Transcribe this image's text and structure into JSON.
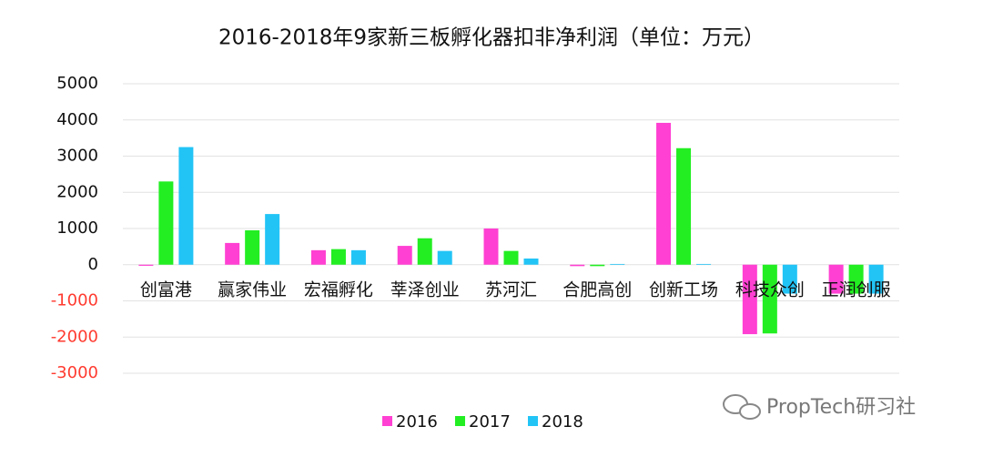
{
  "chart_data": {
    "type": "bar",
    "title": "2016-2018年9家新三板孵化器扣非净利润（单位：万元）",
    "categories": [
      "创富港",
      "赢家伟业",
      "宏福孵化",
      "莘泽创业",
      "苏河汇",
      "合肥高创",
      "创新工场",
      "科技众创",
      "正润创服"
    ],
    "series": [
      {
        "name": "2016",
        "color": "#ff40d2",
        "values": [
          -30,
          600,
          400,
          520,
          1000,
          -40,
          3920,
          -1920,
          -800
        ]
      },
      {
        "name": "2017",
        "color": "#22ee22",
        "values": [
          2300,
          950,
          430,
          730,
          380,
          -40,
          3220,
          -1900,
          -800
        ]
      },
      {
        "name": "2018",
        "color": "#22c4f6",
        "values": [
          3250,
          1400,
          400,
          380,
          170,
          20,
          20,
          -800,
          -800
        ]
      }
    ],
    "ylim": [
      -3000,
      5000
    ],
    "yticks": [
      -3000,
      -2000,
      -1000,
      0,
      1000,
      2000,
      3000,
      4000,
      5000
    ],
    "negative_tick_color": "#ff3b30",
    "grid": true,
    "watermark": "PropTech研习社"
  }
}
